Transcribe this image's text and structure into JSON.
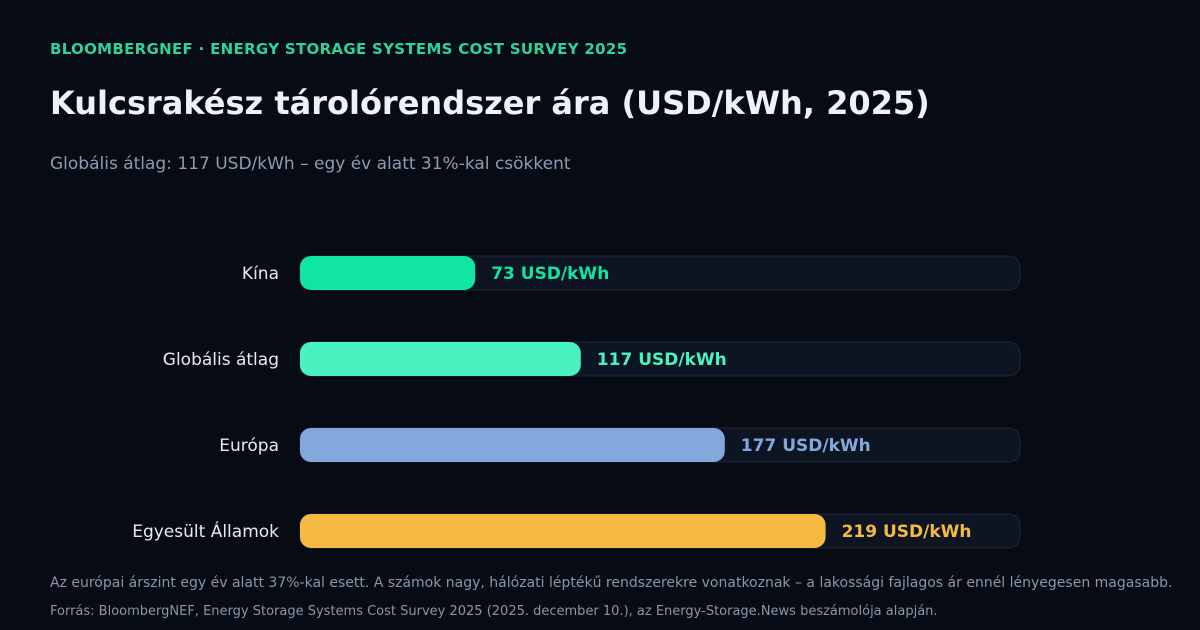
{
  "header": {
    "kicker": "BLOOMBERGNEF · ENERGY STORAGE SYSTEMS COST SURVEY 2025",
    "title": "Kulcsrakész tárolórendszer ára (USD/kWh, 2025)",
    "subtitle": "Globális átlag: 117 USD/kWh – egy év alatt 31%-kal csökkent"
  },
  "footer": {
    "note": "Az európai árszint egy év alatt 37%-kal esett. A számok nagy, hálózati léptékű rendszerekre vonatkoznak – a lakossági fajlagos ár ennél lényegesen magasabb.",
    "source": "Forrás: BloombergNEF, Energy Storage Systems Cost Survey 2025 (2025. december 10.), az Energy-Storage.News beszámolója alapján."
  },
  "colors": {
    "track": "#0e1522",
    "track_border": "#1d2638",
    "label": "#e6ebf3"
  },
  "chart_data": {
    "type": "bar",
    "orientation": "horizontal",
    "categories": [
      "Kína",
      "Globális átlag",
      "Európa",
      "Egyesült Államok"
    ],
    "values": [
      73,
      117,
      177,
      219
    ],
    "value_labels": [
      "73 USD/kWh",
      "117 USD/kWh",
      "177 USD/kWh",
      "219 USD/kWh"
    ],
    "bar_colors": [
      "#10e5a1",
      "#48f3c0",
      "#82a8dc",
      "#f6b941"
    ],
    "unit": "USD/kWh",
    "xlim": [
      0,
      300
    ],
    "grid": false,
    "legend": "none"
  }
}
